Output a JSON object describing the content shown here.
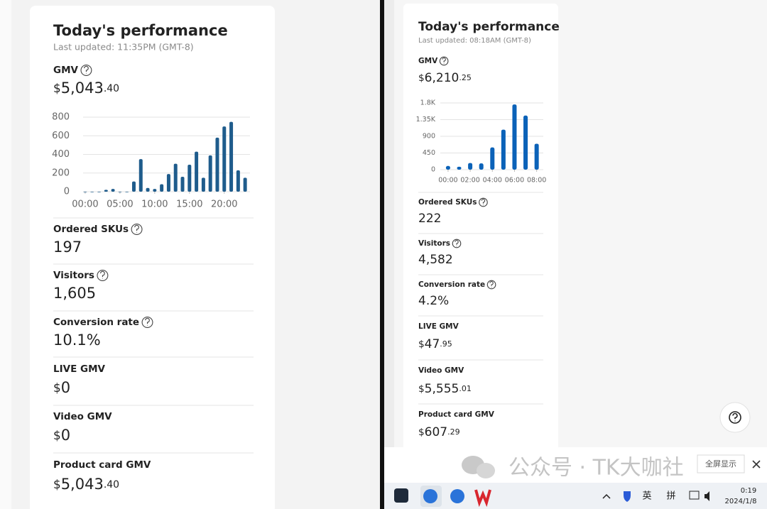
{
  "chart_data": [
    {
      "type": "bar",
      "x": [
        0,
        1,
        2,
        3,
        4,
        5,
        6,
        7,
        8,
        9,
        10,
        11,
        12,
        13,
        14,
        15,
        16,
        17,
        18,
        19,
        20,
        21,
        22,
        23
      ],
      "values": [
        0,
        0,
        0,
        20,
        30,
        0,
        0,
        110,
        350,
        40,
        30,
        80,
        190,
        300,
        160,
        290,
        430,
        150,
        390,
        580,
        700,
        750,
        230,
        150
      ],
      "color": "#1f5c8c",
      "xlim": [
        -0.3,
        23.7
      ],
      "ylim": [
        0,
        800
      ],
      "xticks": [
        {
          "value": 0,
          "label": "00:00"
        },
        {
          "value": 5,
          "label": "05:00"
        },
        {
          "value": 10,
          "label": "10:00"
        },
        {
          "value": 15,
          "label": "15:00"
        },
        {
          "value": 20,
          "label": "20:00"
        }
      ],
      "yticks": [
        0,
        200,
        400,
        600,
        800
      ],
      "grid": true
    },
    {
      "type": "bar",
      "x": [
        0,
        1,
        2,
        3,
        4,
        5,
        6,
        7,
        8
      ],
      "values": [
        100,
        80,
        180,
        170,
        600,
        1080,
        1760,
        1460,
        700
      ],
      "color": "#0b62b8",
      "xlim": [
        -0.7,
        8.6
      ],
      "ylim": [
        0,
        1800
      ],
      "xticks": [
        {
          "value": 0,
          "label": "00:00"
        },
        {
          "value": 2,
          "label": "02:00"
        },
        {
          "value": 4,
          "label": "04:00"
        },
        {
          "value": 6,
          "label": "06:00"
        },
        {
          "value": 8,
          "label": "08:00"
        }
      ],
      "yticks": [
        0,
        450,
        900,
        {
          "value": 1350,
          "label": "1.35K"
        },
        {
          "value": 1800,
          "label": "1.8K"
        }
      ],
      "grid": true
    }
  ],
  "panels": [
    {
      "title": "Today's performance",
      "last_updated": "Last updated: 11:35PM (GMT-8)",
      "gmv": {
        "label": "GMV",
        "help": true,
        "currency": "$",
        "whole": "5,043",
        "cents": ".40"
      },
      "metrics": [
        {
          "label": "Ordered SKUs",
          "help": true,
          "value": "197"
        },
        {
          "label": "Visitors",
          "help": true,
          "value": "1,605"
        },
        {
          "label": "Conversion rate",
          "help": true,
          "value": "10.1%"
        },
        {
          "label": "LIVE GMV",
          "help": false,
          "currency": "$",
          "whole": "0"
        },
        {
          "label": "Video GMV",
          "help": false,
          "currency": "$",
          "whole": "0"
        },
        {
          "label": "Product card GMV",
          "help": false,
          "currency": "$",
          "whole": "5,043",
          "cents": ".40"
        }
      ]
    },
    {
      "title": "Today's performance",
      "last_updated": "Last updated: 08:18AM (GMT-8)",
      "gmv": {
        "label": "GMV",
        "help": true,
        "currency": "$",
        "whole": "6,210",
        "cents": ".25"
      },
      "metrics": [
        {
          "label": "Ordered SKUs",
          "help": true,
          "value": "222"
        },
        {
          "label": "Visitors",
          "help": true,
          "value": "4,582"
        },
        {
          "label": "Conversion rate",
          "help": true,
          "value": "4.2%"
        },
        {
          "label": "LIVE GMV",
          "help": false,
          "currency": "$",
          "whole": "47",
          "cents": ".95"
        },
        {
          "label": "Video GMV",
          "help": false,
          "currency": "$",
          "whole": "5,555",
          "cents": ".01"
        },
        {
          "label": "Product card GMV",
          "help": false,
          "currency": "$",
          "whole": "607",
          "cents": ".29"
        }
      ]
    }
  ],
  "watermark": "公众号 · TK大咖社",
  "fullscreen_button": "全屏显示",
  "taskbar": {
    "input_lang": "英",
    "ime": "拼",
    "time": "0:19",
    "date": "2024/1/8"
  }
}
